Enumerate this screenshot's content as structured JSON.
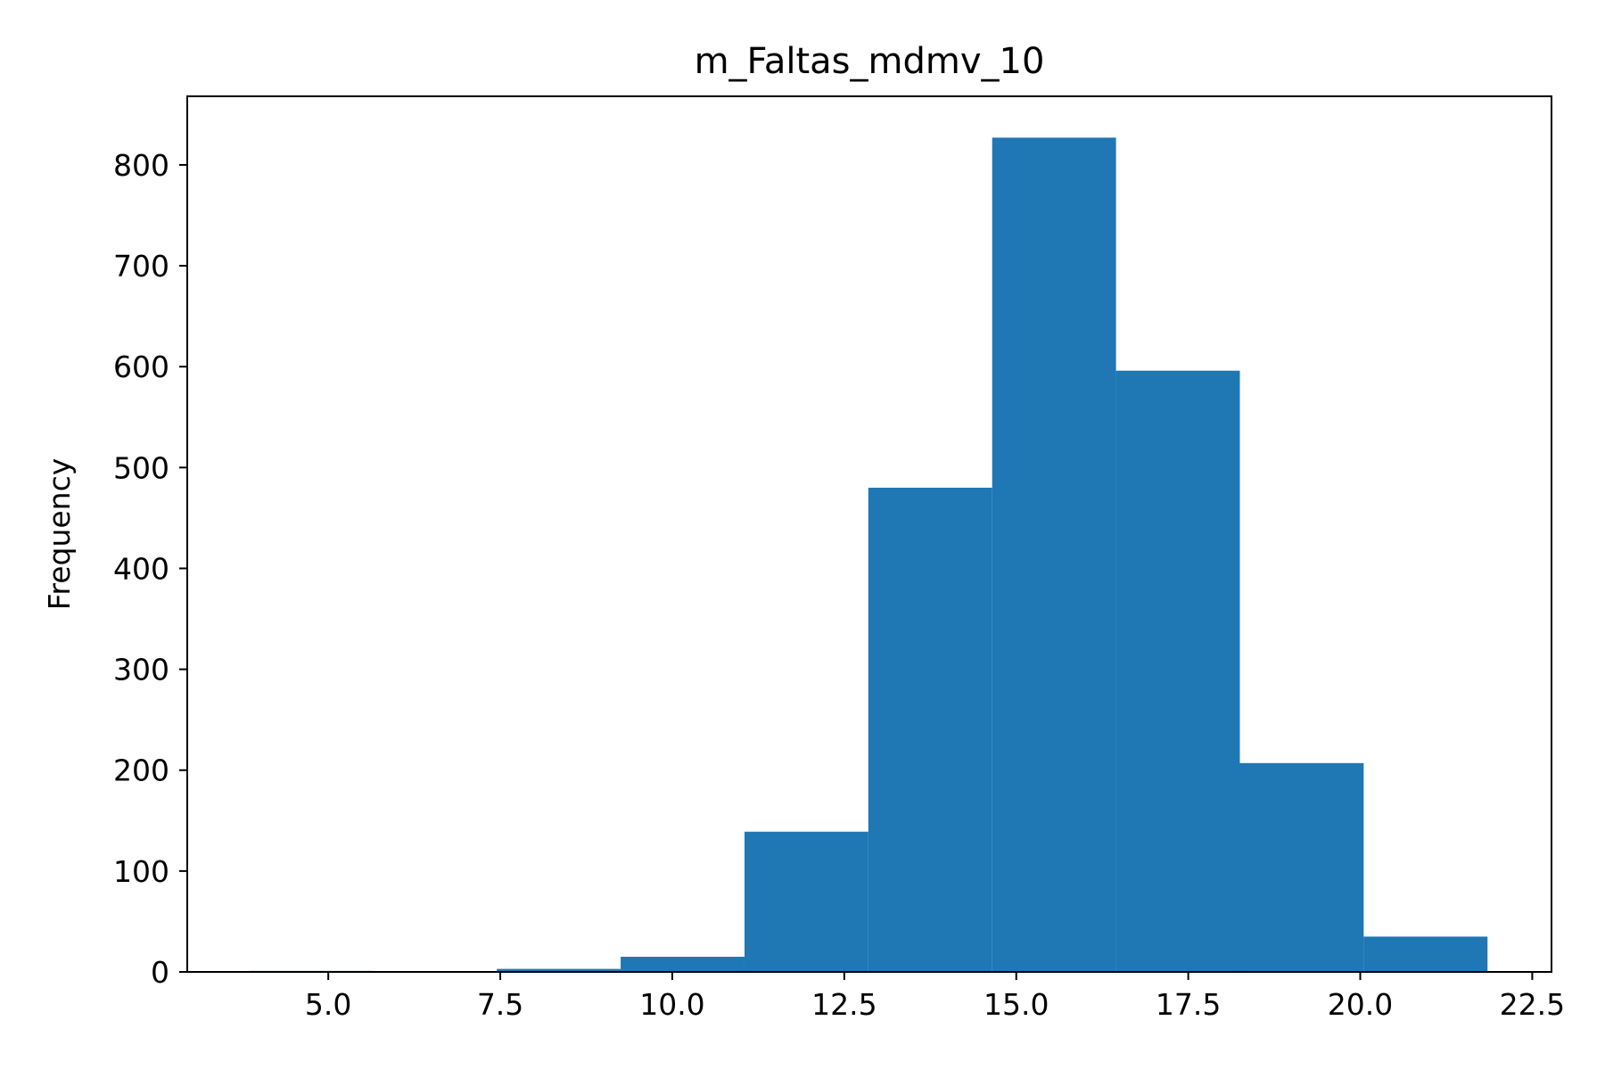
{
  "chart_data": {
    "type": "bar",
    "title": "m_Faltas_mdmv_10",
    "xlabel": "",
    "ylabel": "Frequency",
    "xlim": [
      2.95,
      22.78
    ],
    "ylim": [
      0,
      868
    ],
    "x_ticks": [
      5.0,
      7.5,
      10.0,
      12.5,
      15.0,
      17.5,
      20.0,
      22.5
    ],
    "x_tick_labels": [
      "5.0",
      "7.5",
      "10.0",
      "12.5",
      "15.0",
      "17.5",
      "20.0",
      "22.5"
    ],
    "y_ticks": [
      0,
      100,
      200,
      300,
      400,
      500,
      600,
      700,
      800
    ],
    "y_tick_labels": [
      "0",
      "100",
      "200",
      "300",
      "400",
      "500",
      "600",
      "700",
      "800"
    ],
    "bins": [
      {
        "start": 3.85,
        "end": 5.65,
        "count": 1
      },
      {
        "start": 5.65,
        "end": 7.45,
        "count": 0
      },
      {
        "start": 7.45,
        "end": 9.25,
        "count": 3
      },
      {
        "start": 9.25,
        "end": 11.05,
        "count": 15
      },
      {
        "start": 11.05,
        "end": 12.85,
        "count": 139
      },
      {
        "start": 12.85,
        "end": 14.65,
        "count": 480
      },
      {
        "start": 14.65,
        "end": 16.45,
        "count": 827
      },
      {
        "start": 16.45,
        "end": 18.25,
        "count": 596
      },
      {
        "start": 18.25,
        "end": 20.05,
        "count": 207
      },
      {
        "start": 20.05,
        "end": 21.85,
        "count": 35
      }
    ],
    "bar_color": "#1f77b4",
    "grid": false,
    "legend": "none"
  }
}
